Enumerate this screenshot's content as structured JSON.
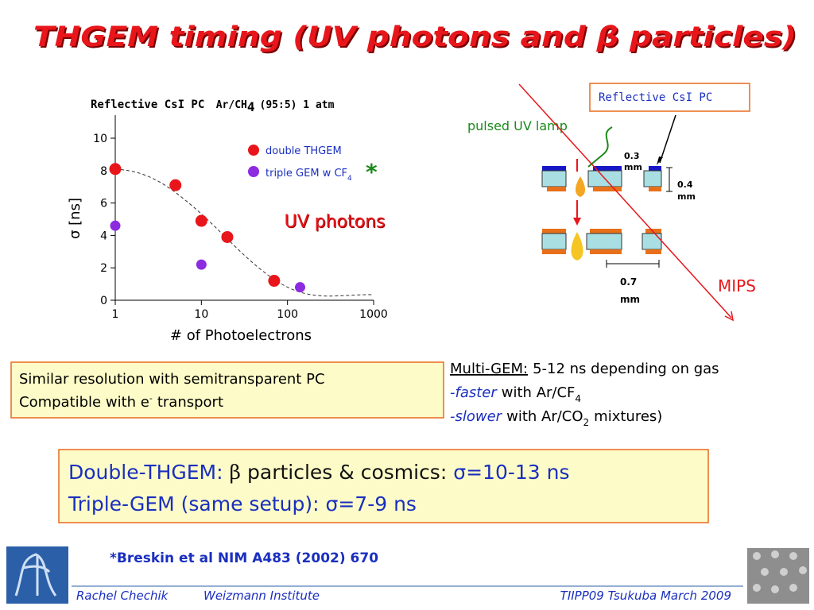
{
  "title": "THGEM timing (UV photons and β particles)",
  "chart_data": {
    "type": "scatter",
    "title": "Reflective CsI PC",
    "subtitle": "Ar/CH",
    "subtitle_sub": "4",
    "subtitle_end": "(95:5) 1 atm",
    "x_label": "# of Photoelectrons",
    "y_label": "σ [ns]",
    "xscale": "log",
    "xlim": [
      1,
      1000
    ],
    "xticks": [
      1,
      10,
      100,
      1000
    ],
    "ylim": [
      0,
      11
    ],
    "yticks": [
      0,
      2,
      4,
      6,
      8,
      10
    ],
    "series": [
      {
        "name": "double THGEM",
        "color": "#e8161b",
        "x": [
          1,
          5,
          20,
          10,
          70
        ],
        "values": [
          8.1,
          7.1,
          3.9,
          4.9,
          1.2
        ]
      },
      {
        "name": "triple GEM w CF",
        "name_sub": "4",
        "color": "#8c2be0",
        "x": [
          1,
          10,
          140
        ],
        "values": [
          4.6,
          2.2,
          0.8
        ]
      }
    ],
    "annotations": [
      "UV photons",
      "*"
    ]
  },
  "diagram": {
    "pc_label": "Reflective CsI PC",
    "lamp_label": "pulsed UV lamp",
    "gap_value": "0.3",
    "gap_unit": "mm",
    "thickness_value": "0.4",
    "thickness_unit": "mm",
    "pitch_value": "0.7",
    "pitch_unit": "mm",
    "mips_label": "MIPS"
  },
  "note_box": {
    "line1": "Similar resolution with semitransparent PC",
    "line2": "Compatible with e",
    "line2_sup": "-",
    "line2_end": "transport"
  },
  "multi_gem": {
    "heading": "Multi-GEM:",
    "heading_rest": "5-12 ns depending on gas",
    "faster": "-faster",
    "faster_rest": "with Ar/CF",
    "faster_sub": "4",
    "slower": "-slower",
    "slower_rest": "with Ar/CO",
    "slower_sub": "2",
    "slower_end": "mixtures)"
  },
  "result_box": {
    "line1_a": "Double-THGEM:",
    "line1_b": "β",
    "line1_c": "particles & cosmics:",
    "line1_d": "σ=10-13 ns",
    "line2_a": "Triple-GEM (same setup):",
    "line2_b": "σ=7-9 ns"
  },
  "reference": "*Breskin et al NIM A483 (2002) 670",
  "footer": {
    "author": "Rachel Chechik",
    "institute": "Weizmann Institute",
    "event": "TIIPP09 Tsukuba March 2009"
  }
}
